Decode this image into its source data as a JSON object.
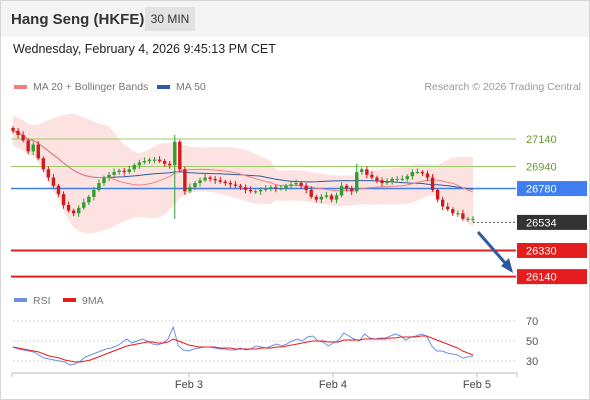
{
  "header": {
    "title": "Hang Seng (HKFE)",
    "timeframe": "30 MIN"
  },
  "datetime": "Wednesday, February 4, 2026 9:45:13 PM CET",
  "legend": {
    "ma20_label": "MA 20 + Bollinger Bands",
    "ma50_label": "MA 50",
    "copyright": "Research © 2026 Trading Central"
  },
  "colors": {
    "bull": "#2e9e2e",
    "bear": "#d11a1a",
    "ma20": "#f08080",
    "ma50": "#2c5aa0",
    "bands_fill": "#fde2e2",
    "support": "#e41e1e",
    "resistance": "#9ccc65",
    "pivot": "#3f7ef2",
    "last": "#333333",
    "rsi": "#6d8fe6",
    "rsi_ma": "#e41e1e"
  },
  "chart_data": [
    {
      "type": "candlestick",
      "title": "Hang Seng (HKFE)",
      "x_labels": [
        "Feb 3",
        "Feb 4",
        "Feb 5"
      ],
      "ylim": [
        26050,
        27380
      ],
      "levels": [
        {
          "label": "27140",
          "value": 27140,
          "kind": "resistance"
        },
        {
          "label": "26940",
          "value": 26940,
          "kind": "resistance"
        },
        {
          "label": "26780",
          "value": 26780,
          "kind": "pivot"
        },
        {
          "label": "26534",
          "value": 26534,
          "kind": "last"
        },
        {
          "label": "26330",
          "value": 26330,
          "kind": "support"
        },
        {
          "label": "26140",
          "value": 26140,
          "kind": "support"
        }
      ],
      "closes": [
        27200,
        27170,
        27130,
        27050,
        27100,
        27000,
        26920,
        26860,
        26800,
        26740,
        26660,
        26620,
        26600,
        26640,
        26680,
        26720,
        26770,
        26820,
        26860,
        26880,
        26900,
        26910,
        26900,
        26920,
        26950,
        26970,
        26980,
        26990,
        26990,
        26980,
        26960,
        26950,
        27120,
        26920,
        26760,
        26790,
        26820,
        26840,
        26860,
        26850,
        26840,
        26830,
        26820,
        26810,
        26800,
        26790,
        26770,
        26760,
        26760,
        26770,
        26780,
        26790,
        26780,
        26780,
        26800,
        26810,
        26820,
        26800,
        26770,
        26720,
        26700,
        26720,
        26730,
        26700,
        26730,
        26800,
        26780,
        26760,
        26900,
        26920,
        26880,
        26860,
        26840,
        26820,
        26830,
        26850,
        26850,
        26850,
        26870,
        26900,
        26900,
        26890,
        26860,
        26770,
        26700,
        26650,
        26630,
        26600,
        26600,
        26560,
        26560,
        26560
      ]
    },
    {
      "type": "line",
      "series_names": [
        "RSI",
        "9MA"
      ],
      "ylim": [
        20,
        80
      ],
      "tick_labels": [
        "70",
        "50",
        "30"
      ],
      "rsi": [
        44,
        42,
        41,
        40,
        39,
        36,
        33,
        32,
        31,
        30,
        29,
        26,
        27,
        30,
        34,
        36,
        38,
        40,
        42,
        43,
        45,
        48,
        52,
        48,
        50,
        52,
        50,
        47,
        46,
        48,
        52,
        64,
        45,
        41,
        40,
        42,
        43,
        44,
        44,
        43,
        42,
        42,
        41,
        41,
        43,
        41,
        42,
        45,
        44,
        43,
        45,
        47,
        45,
        47,
        50,
        52,
        50,
        54,
        55,
        50,
        49,
        45,
        48,
        51,
        58,
        55,
        52,
        50,
        57,
        53,
        52,
        53,
        53,
        55,
        57,
        55,
        51,
        54,
        55,
        57,
        55,
        45,
        40,
        40,
        38,
        37,
        36,
        33,
        34,
        35
      ],
      "rsi_ma": [
        44,
        43,
        42,
        41,
        40,
        39,
        37,
        35,
        34,
        33,
        31,
        30,
        29,
        29,
        30,
        31,
        33,
        35,
        37,
        39,
        41,
        43,
        45,
        46,
        47,
        48,
        49,
        49,
        48,
        48,
        49,
        52,
        50,
        48,
        46,
        45,
        44,
        44,
        44,
        44,
        43,
        43,
        43,
        42,
        42,
        42,
        42,
        42,
        43,
        43,
        43,
        44,
        44,
        45,
        46,
        47,
        48,
        49,
        50,
        50,
        50,
        49,
        49,
        49,
        51,
        51,
        51,
        51,
        52,
        52,
        52,
        52,
        52,
        53,
        53,
        54,
        54,
        54,
        54,
        55,
        55,
        53,
        51,
        49,
        47,
        45,
        43,
        40,
        38,
        36
      ]
    }
  ]
}
